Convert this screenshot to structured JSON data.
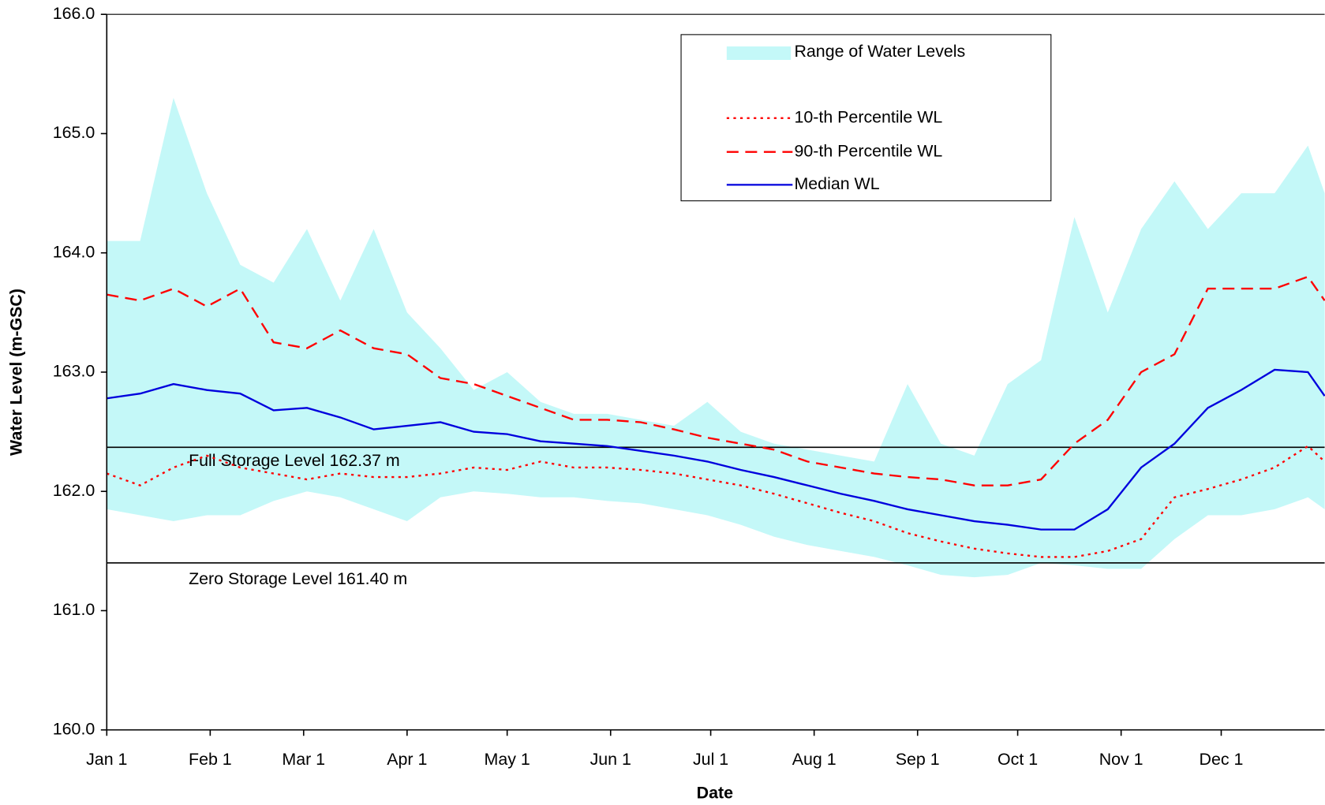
{
  "chart_data": {
    "type": "line",
    "x_label": "Date",
    "y_label": "Water Level (m-GSC)",
    "x": [
      0,
      10,
      20,
      30,
      40,
      50,
      60,
      70,
      80,
      90,
      100,
      110,
      120,
      130,
      140,
      150,
      160,
      170,
      180,
      190,
      200,
      210,
      220,
      230,
      240,
      250,
      260,
      270,
      280,
      290,
      300,
      310,
      320,
      330,
      340,
      350,
      360,
      365
    ],
    "xlim": [
      0,
      365
    ],
    "xticks": [
      {
        "value": 0,
        "label": "Jan 1"
      },
      {
        "value": 31,
        "label": "Feb 1"
      },
      {
        "value": 59,
        "label": "Mar 1"
      },
      {
        "value": 90,
        "label": "Apr 1"
      },
      {
        "value": 120,
        "label": "May 1"
      },
      {
        "value": 151,
        "label": "Jun 1"
      },
      {
        "value": 181,
        "label": "Jul 1"
      },
      {
        "value": 212,
        "label": "Aug 1"
      },
      {
        "value": 243,
        "label": "Sep 1"
      },
      {
        "value": 273,
        "label": "Oct 1"
      },
      {
        "value": 304,
        "label": "Nov 1"
      },
      {
        "value": 334,
        "label": "Dec 1"
      }
    ],
    "ylim": [
      160,
      166
    ],
    "yticks": [
      {
        "value": 160,
        "label": "160.0"
      },
      {
        "value": 161,
        "label": "161.0"
      },
      {
        "value": 162,
        "label": "162.0"
      },
      {
        "value": 163,
        "label": "163.0"
      },
      {
        "value": 164,
        "label": "164.0"
      },
      {
        "value": 165,
        "label": "165.0"
      },
      {
        "value": 166,
        "label": "166.0"
      }
    ],
    "legend": "top-right",
    "range": {
      "name": "Range of Water Levels",
      "color": "#c4f8f8",
      "upper": [
        164.1,
        164.1,
        165.3,
        164.5,
        163.9,
        163.75,
        164.2,
        163.6,
        164.2,
        163.5,
        163.2,
        162.85,
        163.0,
        162.75,
        162.65,
        162.65,
        162.6,
        162.55,
        162.75,
        162.5,
        162.4,
        162.35,
        162.3,
        162.25,
        162.9,
        162.4,
        162.3,
        162.9,
        163.1,
        164.3,
        163.5,
        164.2,
        164.6,
        164.2,
        164.5,
        164.5,
        164.9,
        164.5
      ],
      "lower": [
        161.85,
        161.8,
        161.75,
        161.8,
        161.8,
        161.92,
        162.0,
        161.95,
        161.85,
        161.75,
        161.95,
        162.0,
        161.98,
        161.95,
        161.95,
        161.92,
        161.9,
        161.85,
        161.8,
        161.72,
        161.62,
        161.55,
        161.5,
        161.45,
        161.38,
        161.3,
        161.28,
        161.3,
        161.4,
        161.38,
        161.35,
        161.35,
        161.6,
        161.8,
        161.8,
        161.85,
        161.95,
        161.85
      ]
    },
    "series": [
      {
        "name": "10-th Percentile WL",
        "color": "#ff0000",
        "dash": "dotted",
        "values": [
          162.15,
          162.05,
          162.2,
          162.3,
          162.2,
          162.15,
          162.1,
          162.15,
          162.12,
          162.12,
          162.15,
          162.2,
          162.18,
          162.25,
          162.2,
          162.2,
          162.18,
          162.15,
          162.1,
          162.05,
          161.98,
          161.9,
          161.82,
          161.75,
          161.65,
          161.58,
          161.52,
          161.48,
          161.45,
          161.45,
          161.5,
          161.6,
          161.95,
          162.02,
          162.1,
          162.2,
          162.38,
          162.25
        ]
      },
      {
        "name": "90-th Percentile WL",
        "color": "#ff0000",
        "dash": "dashed",
        "values": [
          163.65,
          163.6,
          163.7,
          163.55,
          163.7,
          163.25,
          163.2,
          163.35,
          163.2,
          163.15,
          162.95,
          162.9,
          162.8,
          162.7,
          162.6,
          162.6,
          162.58,
          162.52,
          162.45,
          162.4,
          162.35,
          162.25,
          162.2,
          162.15,
          162.12,
          162.1,
          162.05,
          162.05,
          162.1,
          162.4,
          162.6,
          163.0,
          163.15,
          163.7,
          163.7,
          163.7,
          163.8,
          163.6
        ]
      },
      {
        "name": "Median WL",
        "color": "#0000dd",
        "dash": "solid",
        "values": [
          162.78,
          162.82,
          162.9,
          162.85,
          162.82,
          162.68,
          162.7,
          162.62,
          162.52,
          162.55,
          162.58,
          162.5,
          162.48,
          162.42,
          162.4,
          162.38,
          162.34,
          162.3,
          162.25,
          162.18,
          162.12,
          162.05,
          161.98,
          161.92,
          161.85,
          161.8,
          161.75,
          161.72,
          161.68,
          161.68,
          161.85,
          162.2,
          162.4,
          162.7,
          162.85,
          163.02,
          163.0,
          162.8
        ]
      }
    ],
    "hlines": [
      {
        "value": 162.37,
        "label": "Full Storage Level 162.37 m"
      },
      {
        "value": 161.4,
        "label": "Zero Storage Level 161.40 m"
      }
    ]
  }
}
